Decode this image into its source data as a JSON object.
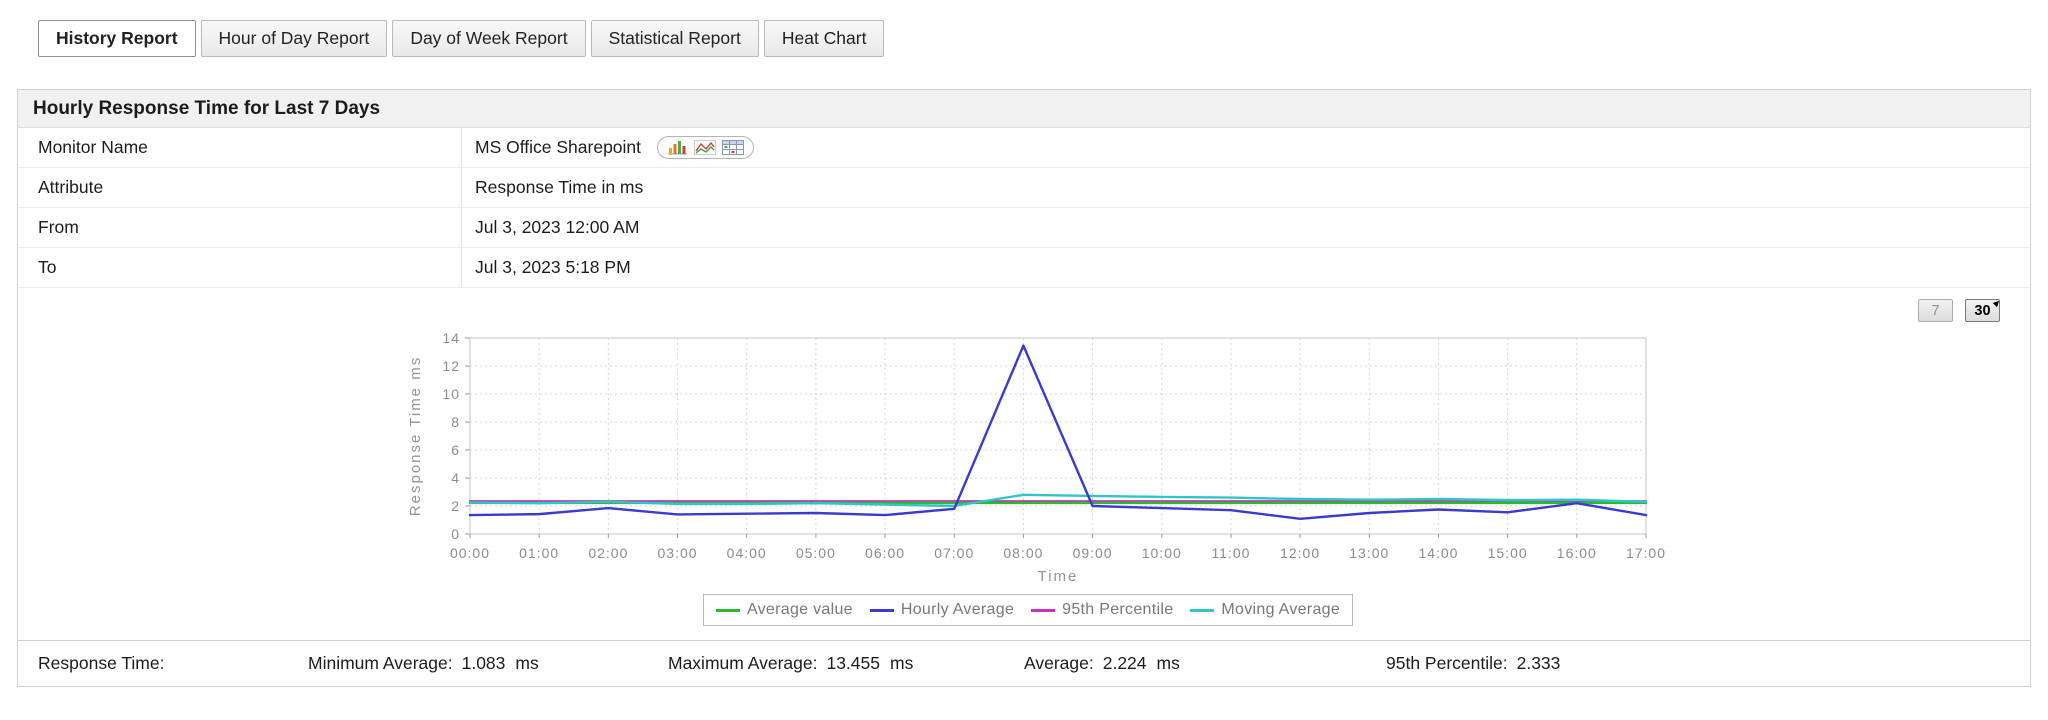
{
  "tabs": [
    {
      "label": "History Report",
      "active": true
    },
    {
      "label": "Hour of Day Report",
      "active": false
    },
    {
      "label": "Day of Week Report",
      "active": false
    },
    {
      "label": "Statistical Report",
      "active": false
    },
    {
      "label": "Heat Chart",
      "active": false
    }
  ],
  "panel": {
    "title": "Hourly Response Time for Last 7 Days",
    "info_rows": [
      {
        "label": "Monitor Name",
        "value": "MS Office Sharepoint",
        "icons": [
          "bar-chart-icon",
          "line-chart-icon",
          "table-icon"
        ]
      },
      {
        "label": "Attribute",
        "value": "Response Time in ms"
      },
      {
        "label": "From",
        "value": "Jul 3, 2023 12:00 AM"
      },
      {
        "label": "To",
        "value": "Jul 3, 2023 5:18 PM"
      }
    ]
  },
  "range_buttons": [
    {
      "label": "7",
      "active": false
    },
    {
      "label": "30",
      "active": true
    }
  ],
  "chart_data": {
    "type": "line",
    "title": "",
    "xlabel": "Time",
    "ylabel": "Response Time ms",
    "ylim": [
      0,
      14
    ],
    "ytick_step": 2,
    "grid": true,
    "legend_position": "bottom",
    "categories": [
      "00:00",
      "01:00",
      "02:00",
      "03:00",
      "04:00",
      "05:00",
      "06:00",
      "07:00",
      "08:00",
      "09:00",
      "10:00",
      "11:00",
      "12:00",
      "13:00",
      "14:00",
      "15:00",
      "16:00",
      "17:00"
    ],
    "series": [
      {
        "name": "Average value",
        "color": "#2eb82e",
        "values": [
          2.224,
          2.224,
          2.224,
          2.224,
          2.224,
          2.224,
          2.224,
          2.224,
          2.224,
          2.224,
          2.224,
          2.224,
          2.224,
          2.224,
          2.224,
          2.224,
          2.224,
          2.224
        ]
      },
      {
        "name": "Hourly Average",
        "color": "#3a3ad0",
        "values": [
          1.35,
          1.42,
          1.85,
          1.4,
          1.45,
          1.5,
          1.35,
          1.8,
          13.455,
          2.0,
          1.85,
          1.7,
          1.083,
          1.5,
          1.75,
          1.55,
          2.2,
          1.35
        ]
      },
      {
        "name": "95th Percentile",
        "color": "#cc2ec4",
        "values": [
          2.333,
          2.333,
          2.333,
          2.333,
          2.333,
          2.333,
          2.333,
          2.333,
          2.333,
          2.333,
          2.333,
          2.333,
          2.333,
          2.333,
          2.333,
          2.333,
          2.333,
          2.333
        ]
      },
      {
        "name": "Moving Average",
        "color": "#2ec6c6",
        "values": [
          2.25,
          2.2,
          2.3,
          2.15,
          2.15,
          2.2,
          2.1,
          2.0,
          2.8,
          2.72,
          2.65,
          2.6,
          2.5,
          2.45,
          2.5,
          2.42,
          2.45,
          2.3
        ]
      }
    ]
  },
  "summary": {
    "label": "Response Time:",
    "stats": [
      {
        "label": "Minimum Average:",
        "value": "1.083",
        "unit": "ms"
      },
      {
        "label": "Maximum Average:",
        "value": "13.455",
        "unit": "ms"
      },
      {
        "label": "Average:",
        "value": "2.224",
        "unit": "ms"
      },
      {
        "label": "95th Percentile:",
        "value": "2.333",
        "unit": ""
      }
    ]
  }
}
